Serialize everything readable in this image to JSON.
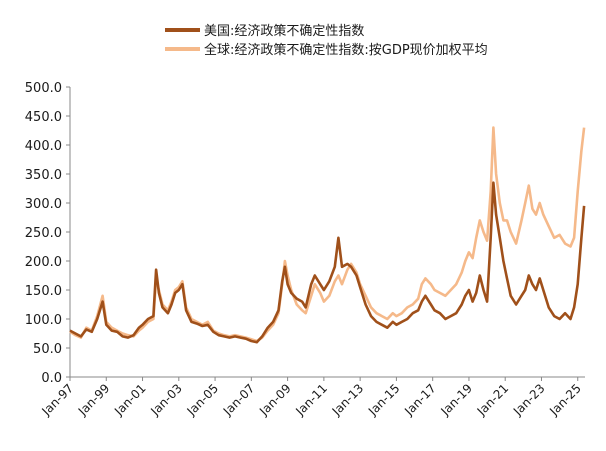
{
  "chart_data": {
    "type": "line",
    "title": "",
    "xlabel": "",
    "ylabel": "",
    "ylim": [
      0,
      500
    ],
    "y_ticks": [
      "0.0",
      "50.0",
      "100.0",
      "150.0",
      "200.0",
      "250.0",
      "300.0",
      "350.0",
      "400.0",
      "450.0",
      "500.0"
    ],
    "x_range": [
      1997.0,
      2025.4
    ],
    "x_tick_labels": [
      "Jan-97",
      "Jan-99",
      "Jan-01",
      "Jan-03",
      "Jan-05",
      "Jan-07",
      "Jan-09",
      "Jan-11",
      "Jan-13",
      "Jan-15",
      "Jan-17",
      "Jan-19",
      "Jan-21",
      "Jan-23",
      "Jan-25"
    ],
    "grid": false,
    "legend_position": "top",
    "series": [
      {
        "name": "全球:经济政策不确定性指数:按GDP现价加权平均",
        "color": "#f5b98a",
        "points": [
          [
            1997.0,
            78
          ],
          [
            1997.3,
            72
          ],
          [
            1997.6,
            68
          ],
          [
            1997.9,
            85
          ],
          [
            1998.2,
            80
          ],
          [
            1998.5,
            105
          ],
          [
            1998.8,
            140
          ],
          [
            1999.0,
            95
          ],
          [
            1999.3,
            85
          ],
          [
            1999.6,
            80
          ],
          [
            1999.9,
            75
          ],
          [
            2000.2,
            72
          ],
          [
            2000.5,
            70
          ],
          [
            2000.8,
            80
          ],
          [
            2001.0,
            85
          ],
          [
            2001.3,
            95
          ],
          [
            2001.6,
            100
          ],
          [
            2001.75,
            170
          ],
          [
            2001.9,
            150
          ],
          [
            2002.1,
            125
          ],
          [
            2002.4,
            115
          ],
          [
            2002.6,
            130
          ],
          [
            2002.8,
            150
          ],
          [
            2003.0,
            155
          ],
          [
            2003.2,
            165
          ],
          [
            2003.4,
            120
          ],
          [
            2003.7,
            100
          ],
          [
            2004.0,
            95
          ],
          [
            2004.3,
            90
          ],
          [
            2004.6,
            95
          ],
          [
            2004.9,
            80
          ],
          [
            2005.2,
            75
          ],
          [
            2005.5,
            72
          ],
          [
            2005.8,
            70
          ],
          [
            2006.1,
            72
          ],
          [
            2006.4,
            70
          ],
          [
            2006.7,
            68
          ],
          [
            2007.0,
            65
          ],
          [
            2007.3,
            62
          ],
          [
            2007.6,
            68
          ],
          [
            2007.9,
            80
          ],
          [
            2008.2,
            90
          ],
          [
            2008.5,
            110
          ],
          [
            2008.7,
            160
          ],
          [
            2008.85,
            200
          ],
          [
            2009.0,
            175
          ],
          [
            2009.2,
            150
          ],
          [
            2009.5,
            125
          ],
          [
            2009.8,
            115
          ],
          [
            2010.0,
            110
          ],
          [
            2010.3,
            140
          ],
          [
            2010.5,
            160
          ],
          [
            2010.8,
            145
          ],
          [
            2011.0,
            130
          ],
          [
            2011.3,
            140
          ],
          [
            2011.6,
            165
          ],
          [
            2011.8,
            175
          ],
          [
            2012.0,
            160
          ],
          [
            2012.3,
            185
          ],
          [
            2012.5,
            195
          ],
          [
            2012.8,
            180
          ],
          [
            2013.0,
            160
          ],
          [
            2013.3,
            140
          ],
          [
            2013.6,
            120
          ],
          [
            2013.9,
            110
          ],
          [
            2014.2,
            105
          ],
          [
            2014.5,
            100
          ],
          [
            2014.8,
            110
          ],
          [
            2015.0,
            105
          ],
          [
            2015.3,
            110
          ],
          [
            2015.6,
            120
          ],
          [
            2015.9,
            125
          ],
          [
            2016.2,
            135
          ],
          [
            2016.4,
            160
          ],
          [
            2016.6,
            170
          ],
          [
            2016.9,
            160
          ],
          [
            2017.1,
            150
          ],
          [
            2017.4,
            145
          ],
          [
            2017.7,
            140
          ],
          [
            2018.0,
            150
          ],
          [
            2018.3,
            160
          ],
          [
            2018.6,
            180
          ],
          [
            2018.8,
            200
          ],
          [
            2019.0,
            215
          ],
          [
            2019.2,
            205
          ],
          [
            2019.4,
            240
          ],
          [
            2019.6,
            270
          ],
          [
            2019.8,
            250
          ],
          [
            2020.0,
            235
          ],
          [
            2020.2,
            320
          ],
          [
            2020.35,
            430
          ],
          [
            2020.5,
            350
          ],
          [
            2020.7,
            300
          ],
          [
            2020.9,
            270
          ],
          [
            2021.1,
            270
          ],
          [
            2021.3,
            250
          ],
          [
            2021.6,
            230
          ],
          [
            2021.9,
            270
          ],
          [
            2022.1,
            300
          ],
          [
            2022.3,
            330
          ],
          [
            2022.5,
            290
          ],
          [
            2022.7,
            280
          ],
          [
            2022.9,
            300
          ],
          [
            2023.1,
            280
          ],
          [
            2023.4,
            260
          ],
          [
            2023.7,
            240
          ],
          [
            2024.0,
            245
          ],
          [
            2024.3,
            230
          ],
          [
            2024.6,
            225
          ],
          [
            2024.8,
            240
          ],
          [
            2025.0,
            320
          ],
          [
            2025.2,
            390
          ],
          [
            2025.35,
            430
          ]
        ]
      },
      {
        "name": "美国:经济政策不确定性指数",
        "color": "#a0501a",
        "points": [
          [
            1997.0,
            80
          ],
          [
            1997.3,
            75
          ],
          [
            1997.6,
            70
          ],
          [
            1997.9,
            82
          ],
          [
            1998.2,
            78
          ],
          [
            1998.5,
            100
          ],
          [
            1998.8,
            130
          ],
          [
            1999.0,
            90
          ],
          [
            1999.3,
            80
          ],
          [
            1999.6,
            78
          ],
          [
            1999.9,
            70
          ],
          [
            2000.2,
            68
          ],
          [
            2000.5,
            72
          ],
          [
            2000.8,
            85
          ],
          [
            2001.0,
            90
          ],
          [
            2001.3,
            100
          ],
          [
            2001.6,
            105
          ],
          [
            2001.75,
            185
          ],
          [
            2001.9,
            145
          ],
          [
            2002.1,
            120
          ],
          [
            2002.4,
            110
          ],
          [
            2002.6,
            125
          ],
          [
            2002.8,
            145
          ],
          [
            2003.0,
            150
          ],
          [
            2003.2,
            160
          ],
          [
            2003.4,
            115
          ],
          [
            2003.7,
            95
          ],
          [
            2004.0,
            92
          ],
          [
            2004.3,
            88
          ],
          [
            2004.6,
            90
          ],
          [
            2004.9,
            78
          ],
          [
            2005.2,
            72
          ],
          [
            2005.5,
            70
          ],
          [
            2005.8,
            68
          ],
          [
            2006.1,
            70
          ],
          [
            2006.4,
            68
          ],
          [
            2006.7,
            66
          ],
          [
            2007.0,
            62
          ],
          [
            2007.3,
            60
          ],
          [
            2007.6,
            70
          ],
          [
            2007.9,
            85
          ],
          [
            2008.2,
            95
          ],
          [
            2008.5,
            115
          ],
          [
            2008.7,
            165
          ],
          [
            2008.85,
            190
          ],
          [
            2009.0,
            160
          ],
          [
            2009.2,
            145
          ],
          [
            2009.5,
            135
          ],
          [
            2009.8,
            130
          ],
          [
            2010.0,
            120
          ],
          [
            2010.3,
            160
          ],
          [
            2010.5,
            175
          ],
          [
            2010.8,
            160
          ],
          [
            2011.0,
            150
          ],
          [
            2011.3,
            165
          ],
          [
            2011.6,
            190
          ],
          [
            2011.8,
            240
          ],
          [
            2012.0,
            190
          ],
          [
            2012.3,
            195
          ],
          [
            2012.5,
            190
          ],
          [
            2012.8,
            175
          ],
          [
            2013.0,
            155
          ],
          [
            2013.3,
            125
          ],
          [
            2013.6,
            105
          ],
          [
            2013.9,
            95
          ],
          [
            2014.2,
            90
          ],
          [
            2014.5,
            85
          ],
          [
            2014.8,
            95
          ],
          [
            2015.0,
            90
          ],
          [
            2015.3,
            95
          ],
          [
            2015.6,
            100
          ],
          [
            2015.9,
            110
          ],
          [
            2016.2,
            115
          ],
          [
            2016.4,
            130
          ],
          [
            2016.6,
            140
          ],
          [
            2016.9,
            125
          ],
          [
            2017.1,
            115
          ],
          [
            2017.4,
            110
          ],
          [
            2017.7,
            100
          ],
          [
            2018.0,
            105
          ],
          [
            2018.3,
            110
          ],
          [
            2018.6,
            125
          ],
          [
            2018.8,
            140
          ],
          [
            2019.0,
            150
          ],
          [
            2019.2,
            130
          ],
          [
            2019.4,
            145
          ],
          [
            2019.6,
            175
          ],
          [
            2019.8,
            150
          ],
          [
            2020.0,
            130
          ],
          [
            2020.2,
            240
          ],
          [
            2020.35,
            335
          ],
          [
            2020.5,
            280
          ],
          [
            2020.7,
            240
          ],
          [
            2020.9,
            200
          ],
          [
            2021.1,
            170
          ],
          [
            2021.3,
            140
          ],
          [
            2021.6,
            125
          ],
          [
            2021.9,
            140
          ],
          [
            2022.1,
            150
          ],
          [
            2022.3,
            175
          ],
          [
            2022.5,
            160
          ],
          [
            2022.7,
            150
          ],
          [
            2022.9,
            170
          ],
          [
            2023.1,
            150
          ],
          [
            2023.4,
            120
          ],
          [
            2023.7,
            105
          ],
          [
            2024.0,
            100
          ],
          [
            2024.3,
            110
          ],
          [
            2024.6,
            100
          ],
          [
            2024.8,
            120
          ],
          [
            2025.0,
            160
          ],
          [
            2025.2,
            240
          ],
          [
            2025.35,
            295
          ]
        ]
      }
    ]
  }
}
